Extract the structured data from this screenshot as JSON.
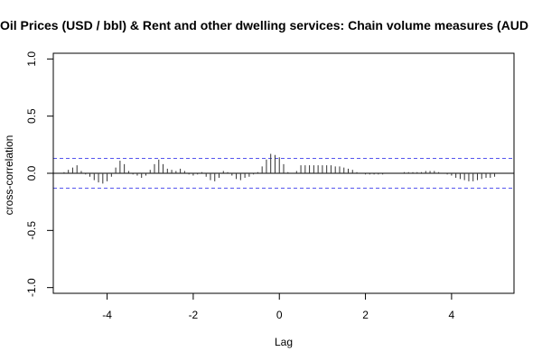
{
  "chart_data": {
    "type": "bar",
    "title": "Oil Prices (USD / bbl) & Rent and other dwelling services: Chain volume measures (AUD",
    "xlabel": "Lag",
    "ylabel": "cross-correlation",
    "xlim": [
      -5.25,
      5.45
    ],
    "ylim": [
      -1.05,
      1.05
    ],
    "x_ticks": [
      -4,
      -2,
      0,
      2,
      4
    ],
    "x_tick_labels": [
      "-4",
      "-2",
      "0",
      "2",
      "4"
    ],
    "y_ticks": [
      -1.0,
      -0.5,
      0.0,
      0.5,
      1.0
    ],
    "y_tick_labels": [
      "-1.0",
      "-0.5",
      "0.0",
      "0.5",
      "1.0"
    ],
    "confidence_band": 0.13,
    "series": [
      {
        "x": [
          -5.0,
          -4.9,
          -4.8,
          -4.7,
          -4.6,
          -4.5,
          -4.4,
          -4.3,
          -4.2,
          -4.1,
          -4.0,
          -3.9,
          -3.8,
          -3.7,
          -3.6,
          -3.5,
          -3.4,
          -3.3,
          -3.2,
          -3.1,
          -3.0,
          -2.9,
          -2.8,
          -2.7,
          -2.6,
          -2.5,
          -2.4,
          -2.3,
          -2.2,
          -2.1,
          -2.0,
          -1.9,
          -1.8,
          -1.7,
          -1.6,
          -1.5,
          -1.4,
          -1.3,
          -1.2,
          -1.1,
          -1.0,
          -0.9,
          -0.8,
          -0.7,
          -0.6,
          -0.5,
          -0.4,
          -0.3,
          -0.2,
          -0.1,
          0.0,
          0.1,
          0.2,
          0.3,
          0.4,
          0.5,
          0.6,
          0.7,
          0.8,
          0.9,
          1.0,
          1.1,
          1.2,
          1.3,
          1.4,
          1.5,
          1.6,
          1.7,
          1.8,
          1.9,
          2.0,
          2.1,
          2.2,
          2.3,
          2.4,
          2.5,
          2.6,
          2.7,
          2.8,
          2.9,
          3.0,
          3.1,
          3.2,
          3.3,
          3.4,
          3.5,
          3.6,
          3.7,
          3.8,
          3.9,
          4.0,
          4.1,
          4.2,
          4.3,
          4.4,
          4.5,
          4.6,
          4.7,
          4.8,
          4.9,
          5.0
        ],
        "values": [
          0.01,
          0.03,
          0.05,
          0.07,
          0.02,
          -0.01,
          -0.03,
          -0.06,
          -0.08,
          -0.09,
          -0.07,
          -0.03,
          0.05,
          0.11,
          0.08,
          0.02,
          -0.01,
          -0.02,
          -0.04,
          -0.02,
          0.03,
          0.08,
          0.12,
          0.08,
          0.04,
          0.03,
          0.02,
          0.04,
          0.02,
          -0.01,
          -0.02,
          -0.01,
          0.01,
          -0.03,
          -0.06,
          -0.07,
          -0.04,
          0.02,
          0.01,
          -0.02,
          -0.05,
          -0.06,
          -0.04,
          -0.03,
          -0.01,
          0.01,
          0.06,
          0.12,
          0.17,
          0.16,
          0.14,
          0.08,
          0.01,
          0.0,
          0.02,
          0.07,
          0.07,
          0.07,
          0.07,
          0.07,
          0.07,
          0.07,
          0.07,
          0.06,
          0.06,
          0.05,
          0.04,
          0.03,
          0.01,
          0.0,
          -0.01,
          -0.01,
          -0.01,
          -0.01,
          -0.01,
          0.0,
          0.0,
          0.0,
          0.0,
          0.01,
          0.01,
          0.01,
          0.01,
          0.01,
          0.02,
          0.02,
          0.02,
          0.01,
          0.0,
          -0.01,
          -0.02,
          -0.04,
          -0.05,
          -0.06,
          -0.07,
          -0.07,
          -0.06,
          -0.05,
          -0.04,
          -0.04,
          -0.03
        ]
      }
    ]
  },
  "colors": {
    "bars": "#333333",
    "confidence_lines": "#5555ee",
    "axis": "#000000"
  }
}
